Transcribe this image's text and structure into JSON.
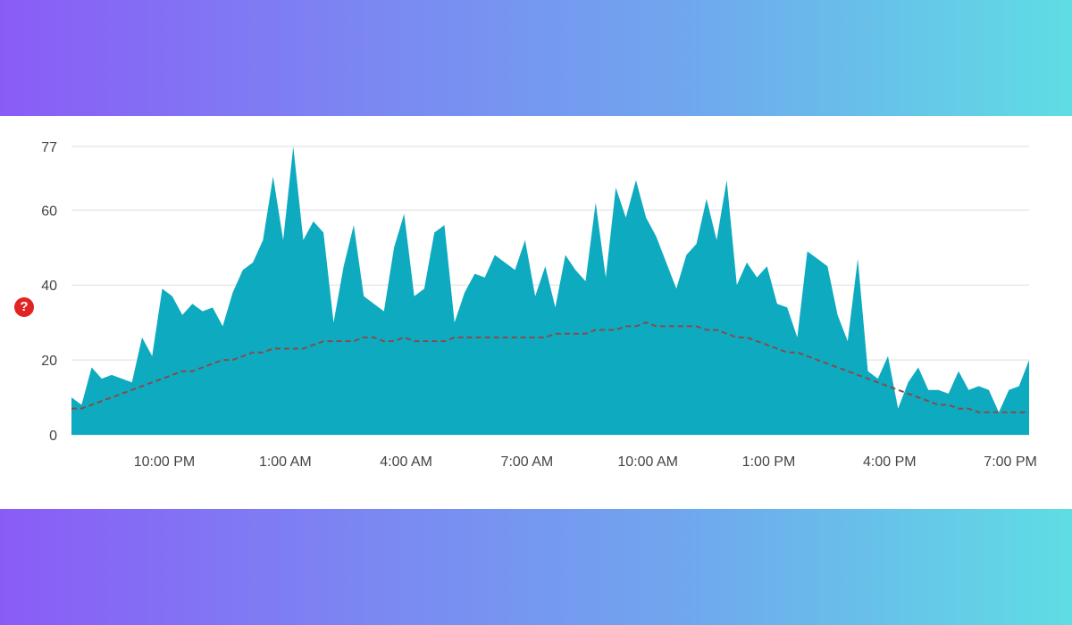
{
  "help_badge": {
    "glyph": "?",
    "icon": "help-icon",
    "color": "#e02424"
  },
  "chart_data": {
    "type": "area",
    "title": "",
    "xlabel": "",
    "ylabel": "",
    "ylim": [
      0,
      77
    ],
    "yticks": [
      0,
      20,
      40,
      60,
      77
    ],
    "xticks": [
      "10:00 PM",
      "1:00 AM",
      "4:00 AM",
      "7:00 AM",
      "10:00 AM",
      "1:00 PM",
      "4:00 PM",
      "7:00 PM"
    ],
    "grid": true,
    "legend": "none",
    "colors": {
      "area": "#0eaabf",
      "trend": "#8a4a4a",
      "grid": "#dddddd"
    },
    "series": [
      {
        "style": "filled-area",
        "values": [
          10,
          8,
          18,
          15,
          16,
          15,
          14,
          26,
          21,
          39,
          37,
          32,
          35,
          33,
          34,
          29,
          38,
          44,
          46,
          52,
          69,
          52,
          77,
          52,
          57,
          54,
          30,
          45,
          56,
          37,
          35,
          33,
          50,
          59,
          37,
          39,
          54,
          56,
          30,
          38,
          43,
          42,
          48,
          46,
          44,
          52,
          37,
          45,
          34,
          48,
          44,
          41,
          62,
          42,
          66,
          58,
          68,
          58,
          53,
          46,
          39,
          48,
          51,
          63,
          52,
          68,
          40,
          46,
          42,
          45,
          35,
          34,
          26,
          49,
          47,
          45,
          32,
          25,
          47,
          17,
          15,
          21,
          7,
          14,
          18,
          12,
          12,
          11,
          17,
          12,
          13,
          12,
          6,
          12,
          13,
          20
        ]
      },
      {
        "style": "dashed-trend",
        "values": [
          7,
          7,
          8,
          9,
          10,
          11,
          12,
          13,
          14,
          15,
          16,
          17,
          17,
          18,
          19,
          20,
          20,
          21,
          22,
          22,
          23,
          23,
          23,
          23,
          24,
          25,
          25,
          25,
          25,
          26,
          26,
          25,
          25,
          26,
          25,
          25,
          25,
          25,
          26,
          26,
          26,
          26,
          26,
          26,
          26,
          26,
          26,
          26,
          27,
          27,
          27,
          27,
          28,
          28,
          28,
          29,
          29,
          30,
          29,
          29,
          29,
          29,
          29,
          28,
          28,
          27,
          26,
          26,
          25,
          24,
          23,
          22,
          22,
          21,
          20,
          19,
          18,
          17,
          16,
          15,
          14,
          13,
          12,
          11,
          10,
          9,
          8,
          8,
          7,
          7,
          6,
          6,
          6,
          6,
          6,
          6
        ]
      }
    ]
  }
}
